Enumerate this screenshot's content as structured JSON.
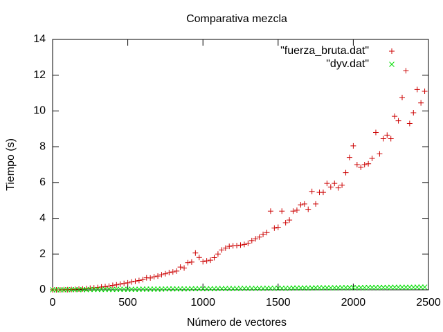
{
  "chart_data": {
    "type": "scatter",
    "title": "Comparativa mezcla",
    "xlabel": "Número de vectores",
    "ylabel": "Tiempo (s)",
    "xlim": [
      0,
      2500
    ],
    "ylim": [
      0,
      14
    ],
    "xticks": [
      0,
      500,
      1000,
      1500,
      2000,
      2500
    ],
    "yticks": [
      0,
      2,
      4,
      6,
      8,
      10,
      12,
      14
    ],
    "legend": "top-right",
    "x": [
      0,
      25,
      50,
      75,
      100,
      125,
      150,
      175,
      200,
      225,
      250,
      275,
      300,
      325,
      350,
      375,
      400,
      425,
      450,
      475,
      500,
      525,
      550,
      575,
      600,
      625,
      650,
      675,
      700,
      725,
      750,
      775,
      800,
      825,
      850,
      875,
      900,
      925,
      950,
      975,
      1000,
      1025,
      1050,
      1075,
      1100,
      1125,
      1150,
      1175,
      1200,
      1225,
      1250,
      1275,
      1300,
      1325,
      1350,
      1375,
      1400,
      1425,
      1450,
      1475,
      1500,
      1525,
      1550,
      1575,
      1600,
      1625,
      1650,
      1675,
      1700,
      1725,
      1750,
      1775,
      1800,
      1825,
      1850,
      1875,
      1900,
      1925,
      1950,
      1975,
      2000,
      2025,
      2050,
      2075,
      2100,
      2125,
      2150,
      2175,
      2200,
      2225,
      2250,
      2275,
      2300,
      2325,
      2350,
      2375,
      2400,
      2425,
      2450,
      2475
    ],
    "series": [
      {
        "name": "\"fuerza_bruta.dat\"",
        "color": "#cc0000",
        "marker": "plus",
        "values": [
          0.0,
          0.0,
          0.0,
          0.01,
          0.01,
          0.02,
          0.03,
          0.04,
          0.05,
          0.07,
          0.09,
          0.11,
          0.13,
          0.16,
          0.18,
          0.21,
          0.25,
          0.28,
          0.32,
          0.36,
          0.39,
          0.44,
          0.48,
          0.52,
          0.57,
          0.67,
          0.66,
          0.73,
          0.77,
          0.84,
          0.9,
          0.96,
          1.0,
          1.05,
          1.27,
          1.22,
          1.52,
          1.55,
          2.06,
          1.81,
          1.57,
          1.62,
          1.66,
          1.8,
          2.0,
          2.23,
          2.33,
          2.43,
          2.46,
          2.47,
          2.5,
          2.54,
          2.6,
          2.75,
          2.85,
          2.95,
          3.1,
          3.2,
          4.4,
          3.45,
          3.5,
          4.4,
          3.75,
          3.9,
          4.4,
          4.45,
          4.75,
          4.8,
          4.5,
          5.5,
          4.8,
          5.45,
          5.45,
          5.95,
          5.75,
          5.95,
          5.7,
          5.85,
          6.55,
          7.4,
          8.05,
          7.0,
          6.85,
          7.0,
          7.05,
          7.35,
          8.8,
          7.6,
          8.45,
          8.65,
          8.45,
          9.7,
          9.45,
          10.75,
          12.25,
          9.3,
          9.9,
          11.2,
          10.45,
          11.1
        ]
      },
      {
        "name": "\"dyv.dat\"",
        "color": "#00dd00",
        "marker": "cross",
        "values": [
          0.0,
          0.0,
          0.0,
          0.0,
          0.01,
          0.01,
          0.01,
          0.01,
          0.01,
          0.01,
          0.02,
          0.02,
          0.02,
          0.02,
          0.02,
          0.02,
          0.02,
          0.03,
          0.03,
          0.03,
          0.03,
          0.03,
          0.03,
          0.03,
          0.04,
          0.04,
          0.04,
          0.04,
          0.04,
          0.04,
          0.05,
          0.05,
          0.05,
          0.05,
          0.05,
          0.05,
          0.05,
          0.06,
          0.06,
          0.06,
          0.06,
          0.06,
          0.06,
          0.06,
          0.07,
          0.07,
          0.07,
          0.07,
          0.07,
          0.07,
          0.08,
          0.08,
          0.08,
          0.08,
          0.08,
          0.08,
          0.08,
          0.09,
          0.09,
          0.09,
          0.09,
          0.09,
          0.09,
          0.09,
          0.1,
          0.1,
          0.1,
          0.1,
          0.1,
          0.1,
          0.11,
          0.11,
          0.11,
          0.11,
          0.11,
          0.11,
          0.11,
          0.12,
          0.12,
          0.12,
          0.12,
          0.12,
          0.12,
          0.12,
          0.13,
          0.13,
          0.13,
          0.13,
          0.13,
          0.13,
          0.14,
          0.14,
          0.14,
          0.14,
          0.14,
          0.14,
          0.14,
          0.15,
          0.15,
          0.15
        ]
      }
    ]
  }
}
